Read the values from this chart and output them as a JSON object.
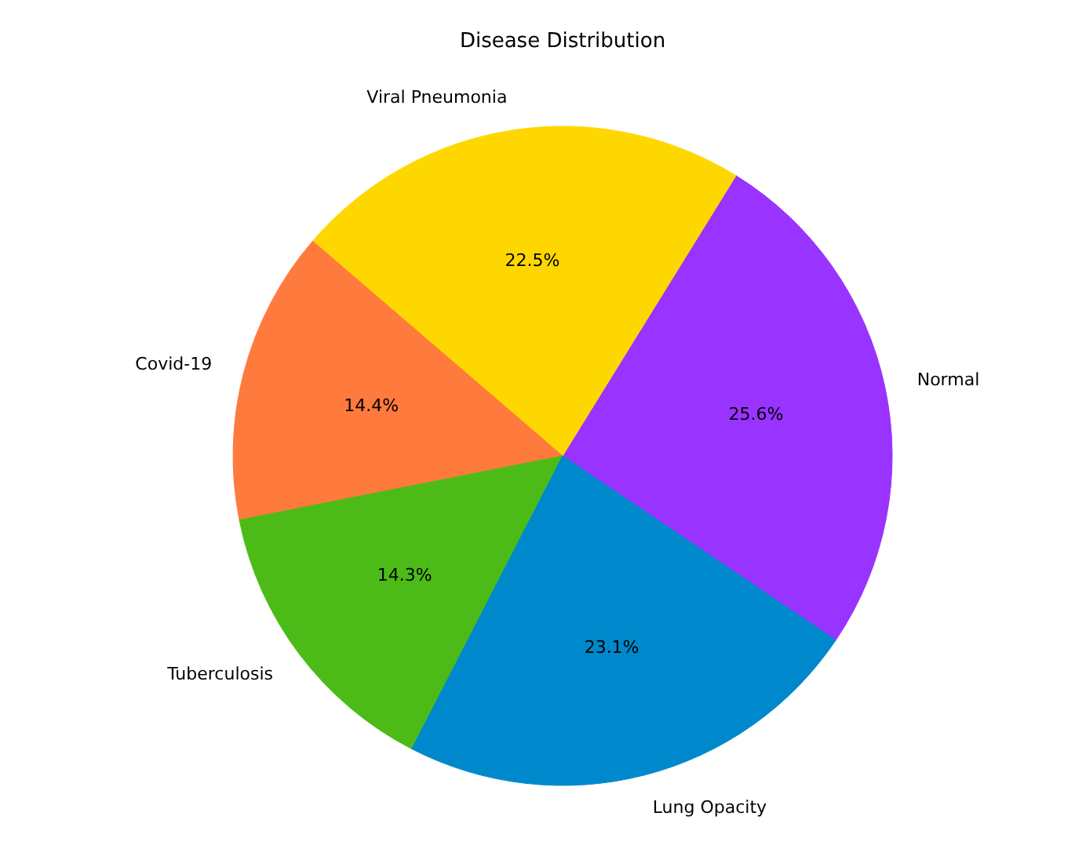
{
  "chart_data": {
    "type": "pie",
    "title": "Disease Distribution",
    "categories": [
      "Normal",
      "Viral Pneumonia",
      "Covid-19",
      "Tuberculosis",
      "Lung Opacity"
    ],
    "values": [
      25.6,
      22.5,
      14.4,
      14.3,
      23.1
    ],
    "value_labels": [
      "25.6%",
      "22.5%",
      "14.4%",
      "14.3%",
      "23.1%"
    ],
    "colors": [
      "#9933ff",
      "#ffd700",
      "#ff7a3d",
      "#4cbb17",
      "#0088cc"
    ]
  }
}
